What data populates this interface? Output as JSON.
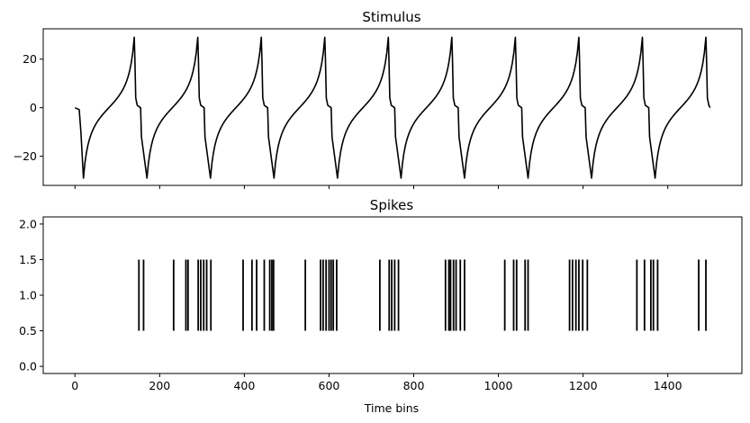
{
  "chart_data": [
    {
      "type": "line",
      "title": "Stimulus",
      "xlabel": "",
      "ylabel": "",
      "xlim": [
        -75,
        1575
      ],
      "ylim": [
        -32,
        32.5
      ],
      "xticks": [
        0,
        200,
        400,
        600,
        800,
        1000,
        1200,
        1400
      ],
      "xtick_labels_visible": false,
      "yticks": [
        -20,
        0,
        20
      ],
      "ytick_labels": [
        "−20",
        "0",
        "20"
      ],
      "line_color": "#000000",
      "grid": false,
      "series": [
        {
          "waveform": "periodic-ramp-spike",
          "x_start": 0,
          "x_end": 1500,
          "hold_until": 10,
          "first_drop": 14,
          "trough_x": [
            20,
            170,
            320,
            470,
            620,
            770,
            920,
            1070,
            1220,
            1370
          ],
          "peak_x": [
            140,
            290,
            440,
            590,
            740,
            890,
            1040,
            1190,
            1340,
            1490
          ],
          "drop_x": [
            147,
            297,
            447,
            597,
            747,
            897,
            1047,
            1197,
            1347,
            1497
          ],
          "sharp_drop_x": [
            157,
            307,
            457,
            607,
            757,
            907,
            1057,
            1207,
            1357
          ],
          "min_value": -29,
          "max_value": 29,
          "end_value": 0
        }
      ]
    },
    {
      "type": "scatter",
      "title": "Spikes",
      "xlabel": "Time bins",
      "ylabel": "",
      "xlim": [
        -75,
        1575
      ],
      "ylim": [
        -0.1,
        2.1
      ],
      "xticks": [
        0,
        200,
        400,
        600,
        800,
        1000,
        1200,
        1400
      ],
      "xtick_labels": [
        "0",
        "200",
        "400",
        "600",
        "800",
        "1000",
        "1200",
        "1400"
      ],
      "yticks": [
        0.0,
        0.5,
        1.0,
        1.5,
        2.0
      ],
      "ytick_labels": [
        "0.0",
        "0.5",
        "1.0",
        "1.5",
        "2.0"
      ],
      "marker": "vertical-line",
      "line_color": "#000000",
      "grid": false,
      "spike_bottom": 0.5,
      "spike_top": 1.5,
      "series": [
        {
          "x": [
            151,
            162,
            233,
            262,
            267,
            291,
            297,
            304,
            311,
            321,
            397,
            418,
            429,
            447,
            460,
            465,
            469,
            544,
            580,
            586,
            593,
            600,
            605,
            610,
            618,
            720,
            742,
            748,
            755,
            764,
            875,
            883,
            887,
            894,
            900,
            910,
            920,
            1015,
            1036,
            1043,
            1063,
            1070,
            1168,
            1175,
            1183,
            1190,
            1199,
            1210,
            1327,
            1345,
            1360,
            1366,
            1376,
            1473,
            1490
          ]
        }
      ]
    }
  ]
}
